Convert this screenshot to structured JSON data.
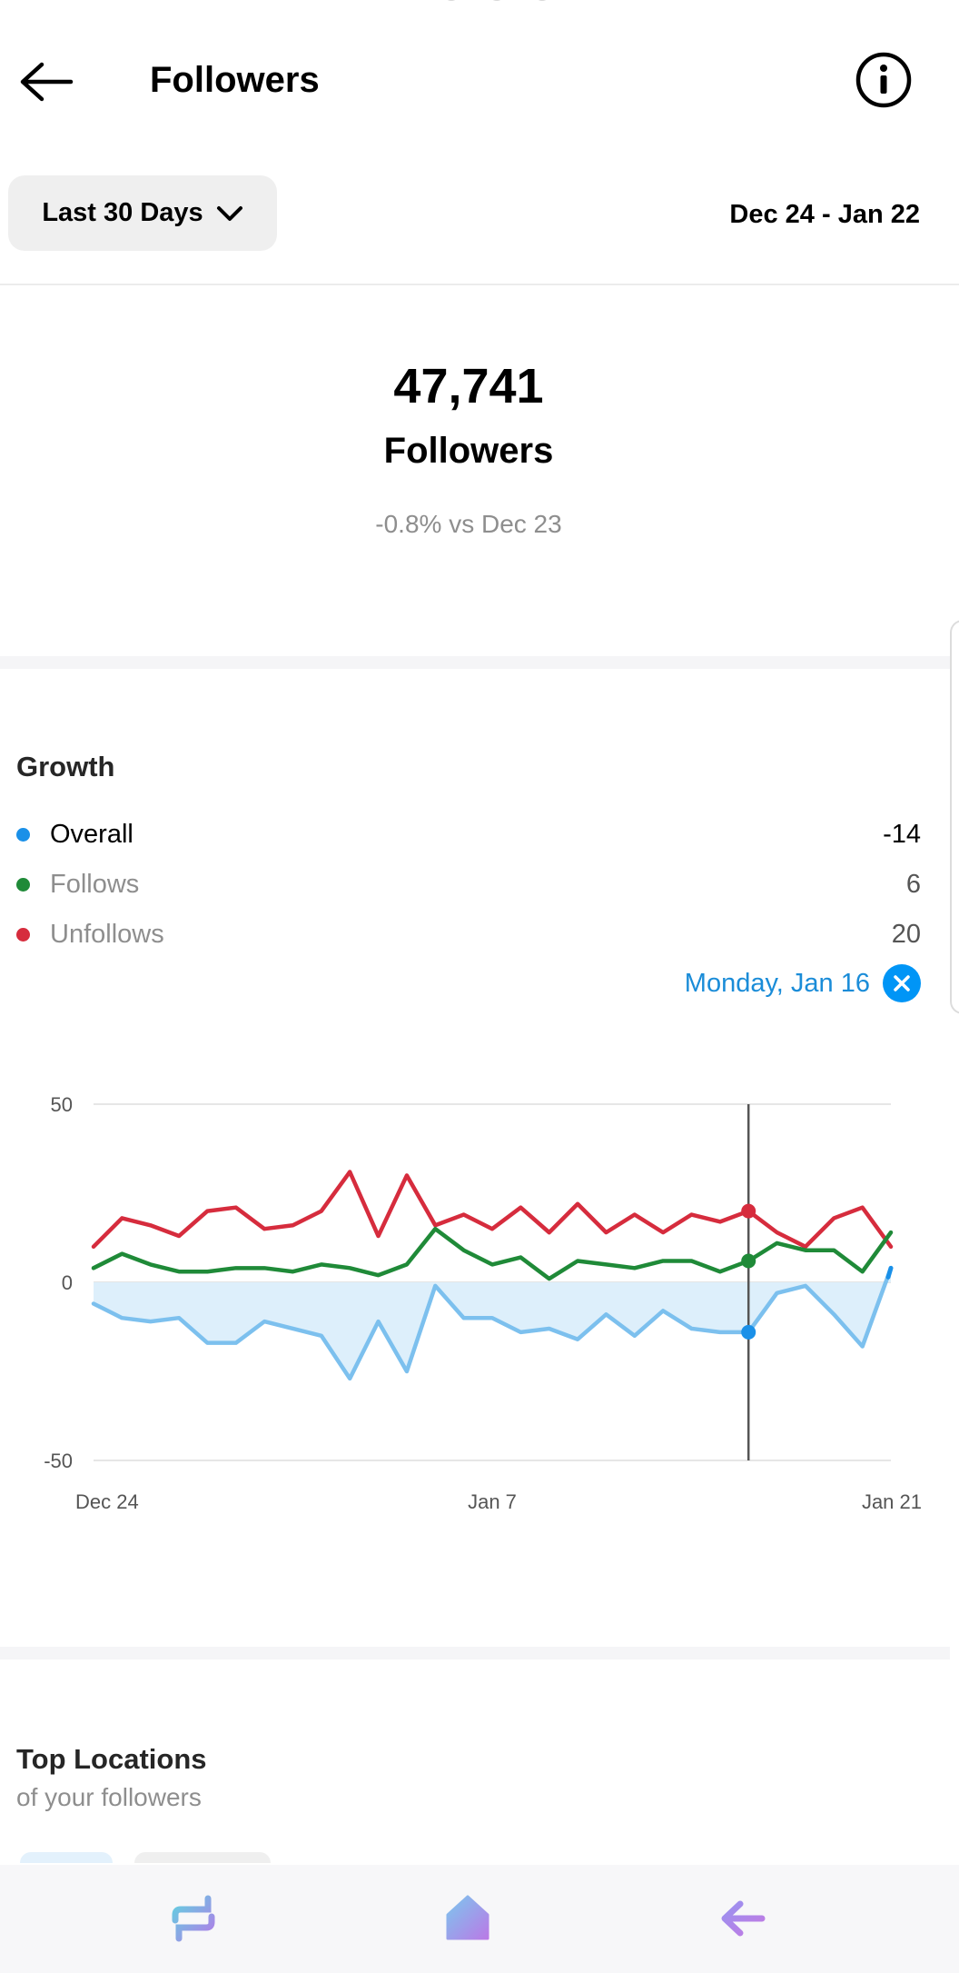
{
  "header": {
    "title": "Followers"
  },
  "filter": {
    "range_label": "Last 30 Days",
    "date_range": "Dec 24 - Jan 22"
  },
  "summary": {
    "count": "47,741",
    "label": "Followers",
    "comparison": "-0.8% vs Dec 23"
  },
  "growth": {
    "title": "Growth",
    "legend": [
      {
        "name": "Overall",
        "value": "-14",
        "color": "#1a90e8"
      },
      {
        "name": "Follows",
        "value": "6",
        "color": "#1f8a38"
      },
      {
        "name": "Unfollows",
        "value": "20",
        "color": "#d62c3d"
      }
    ],
    "selected_date": "Monday, Jan 16"
  },
  "chart_data": {
    "type": "line",
    "x": [
      "Dec 24",
      "Dec 25",
      "Dec 26",
      "Dec 27",
      "Dec 28",
      "Dec 29",
      "Dec 30",
      "Dec 31",
      "Jan 1",
      "Jan 2",
      "Jan 3",
      "Jan 4",
      "Jan 5",
      "Jan 6",
      "Jan 7",
      "Jan 8",
      "Jan 9",
      "Jan 10",
      "Jan 11",
      "Jan 12",
      "Jan 13",
      "Jan 14",
      "Jan 15",
      "Jan 16",
      "Jan 17",
      "Jan 18",
      "Jan 19",
      "Jan 20",
      "Jan 21"
    ],
    "x_tick_labels": [
      "Dec 24",
      "Jan 7",
      "Jan 21"
    ],
    "y_tick_labels": [
      "50",
      "0",
      "-50"
    ],
    "ylim": [
      -50,
      50
    ],
    "grid": true,
    "highlight_x": "Jan 16",
    "series": [
      {
        "name": "Unfollows",
        "color": "#d62c3d",
        "values": [
          10,
          18,
          16,
          13,
          20,
          21,
          15,
          16,
          20,
          31,
          13,
          30,
          16,
          19,
          15,
          21,
          14,
          22,
          14,
          19,
          14,
          19,
          17,
          20,
          14,
          10,
          18,
          21,
          10
        ]
      },
      {
        "name": "Follows",
        "color": "#1f8a38",
        "values": [
          4,
          8,
          5,
          3,
          3,
          4,
          4,
          3,
          5,
          4,
          2,
          5,
          15,
          9,
          5,
          7,
          1,
          6,
          5,
          4,
          6,
          6,
          3,
          6,
          11,
          9,
          9,
          3,
          14
        ]
      },
      {
        "name": "Overall",
        "color": "#7cc0ee",
        "fill": "#ddeffb",
        "values": [
          -6,
          -10,
          -11,
          -10,
          -17,
          -17,
          -11,
          -13,
          -15,
          -27,
          -11,
          -25,
          -1,
          -10,
          -10,
          -14,
          -13,
          -16,
          -9,
          -15,
          -8,
          -13,
          -14,
          -14,
          -3,
          -1,
          -9,
          -18,
          4
        ]
      }
    ]
  },
  "locations": {
    "title": "Top Locations",
    "subtitle": "of your followers"
  },
  "nav": {
    "left_icon": "recents-icon",
    "center_icon": "home-icon",
    "right_icon": "back-arrow-icon"
  }
}
